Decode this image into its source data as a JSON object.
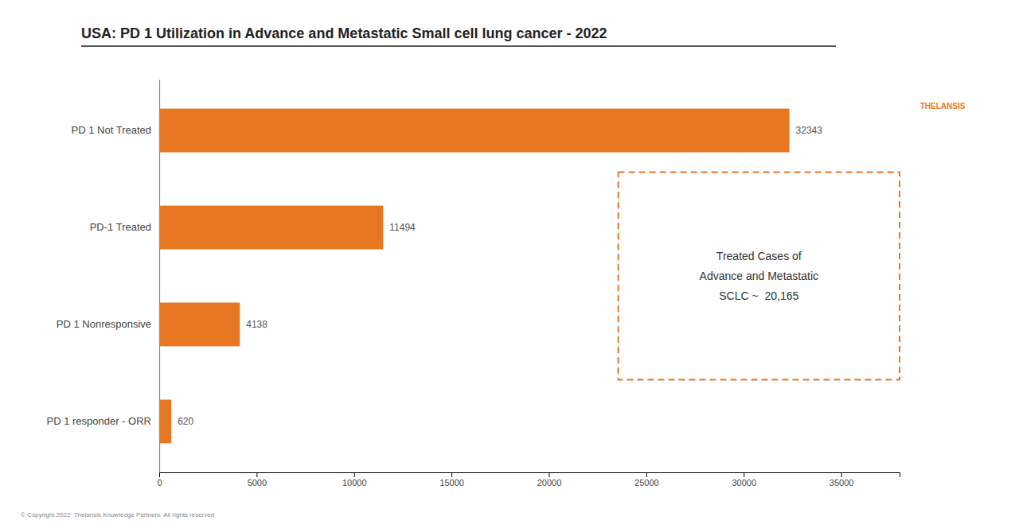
{
  "chart_data": {
    "type": "bar",
    "orientation": "horizontal",
    "title": "USA: PD 1 Utilization in Advance and Metastatic Small cell lung cancer - 2022",
    "categories": [
      "PD 1 responder - ORR",
      "PD 1 Nonresponsive",
      "PD-1 Treated",
      "PD 1 Not Treated"
    ],
    "values": [
      620,
      4138,
      11494,
      32343
    ],
    "color": "#E87722",
    "xlim": [
      0,
      38000
    ],
    "xticks": [
      0,
      5000,
      10000,
      15000,
      20000,
      25000,
      30000,
      35000
    ],
    "data_labels": true,
    "grid": false,
    "annotations": [
      "Treated Cases of\nAdvance and Metastatic\nSCLC ~  20,165",
      "THELANSIS",
      "© Copyright 2022  Thelansis Knowledge Partners. All rights reserved"
    ]
  }
}
